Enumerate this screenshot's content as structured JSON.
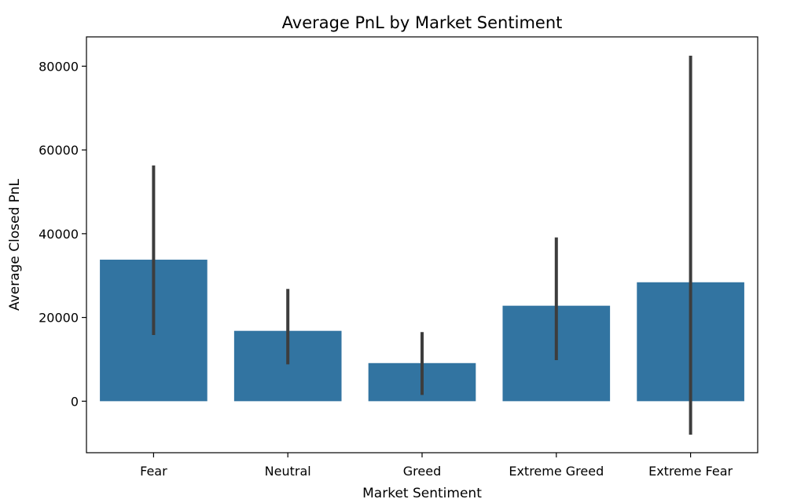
{
  "chart_data": {
    "type": "bar",
    "title": "Average PnL by Market Sentiment",
    "xlabel": "Market Sentiment",
    "ylabel": "Average Closed PnL",
    "categories": [
      "Fear",
      "Neutral",
      "Greed",
      "Extreme Greed",
      "Extreme Fear"
    ],
    "values": [
      33800,
      16800,
      9100,
      22800,
      28400
    ],
    "error_low": [
      15800,
      8800,
      1500,
      9800,
      -8000
    ],
    "error_high": [
      56300,
      26800,
      16500,
      39100,
      82500
    ],
    "yticks": [
      0,
      20000,
      40000,
      60000,
      80000
    ],
    "ytick_labels": [
      "0",
      "20000",
      "40000",
      "60000",
      "80000"
    ],
    "ylim": [
      -12300,
      87000
    ],
    "grid": false,
    "colors": {
      "bar": "#3274a1",
      "error_bar": "#3d3d3d",
      "axis": "#000000"
    }
  }
}
